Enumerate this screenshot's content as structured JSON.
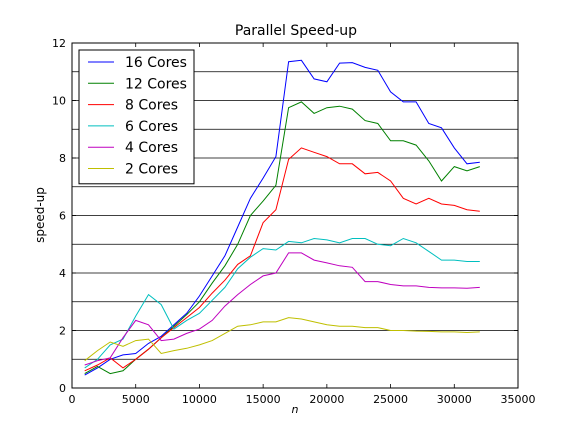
{
  "chart_data": {
    "type": "line",
    "title": "Parallel Speed-up",
    "xlabel": "n",
    "ylabel": "speed-up",
    "xlim": [
      0,
      35000
    ],
    "ylim": [
      0,
      12
    ],
    "xticks": [
      0,
      5000,
      10000,
      15000,
      20000,
      25000,
      30000,
      35000
    ],
    "yticks": [
      0,
      2,
      4,
      6,
      8,
      10,
      12
    ],
    "grid": "horizontal",
    "legend_position": "top-left",
    "x": [
      1000,
      2000,
      3000,
      4000,
      5000,
      6000,
      7000,
      8000,
      9000,
      10000,
      11000,
      12000,
      13000,
      14000,
      15000,
      16000,
      17000,
      18000,
      19000,
      20000,
      21000,
      22000,
      23000,
      24000,
      25000,
      26000,
      27000,
      28000,
      29000,
      30000,
      31000,
      32000
    ],
    "series": [
      {
        "name": "16 Cores",
        "color": "#0000ff",
        "values": [
          0.45,
          0.7,
          1.0,
          1.15,
          1.2,
          1.55,
          1.8,
          2.2,
          2.6,
          3.2,
          3.9,
          4.6,
          5.6,
          6.6,
          7.3,
          8.05,
          11.35,
          11.4,
          10.75,
          10.65,
          11.3,
          11.32,
          11.15,
          11.05,
          10.3,
          9.95,
          9.95,
          9.2,
          9.05,
          8.35,
          7.8,
          7.85
        ]
      },
      {
        "name": "12 Cores",
        "color": "#008000",
        "values": [
          0.5,
          0.75,
          0.5,
          0.6,
          1.0,
          1.35,
          1.75,
          2.15,
          2.55,
          3.0,
          3.65,
          4.25,
          5.0,
          6.0,
          6.5,
          7.05,
          9.75,
          9.95,
          9.55,
          9.75,
          9.8,
          9.7,
          9.3,
          9.2,
          8.6,
          8.6,
          8.45,
          7.9,
          7.2,
          7.7,
          7.55,
          7.7
        ]
      },
      {
        "name": "8 Cores",
        "color": "#ff0000",
        "values": [
          0.6,
          0.8,
          1.05,
          0.7,
          1.0,
          1.35,
          1.75,
          2.1,
          2.45,
          2.8,
          3.3,
          3.75,
          4.3,
          4.6,
          5.75,
          6.2,
          7.95,
          8.35,
          8.2,
          8.05,
          7.8,
          7.8,
          7.45,
          7.5,
          7.2,
          6.6,
          6.4,
          6.6,
          6.4,
          6.35,
          6.2,
          6.15
        ]
      },
      {
        "name": "6 Cores",
        "color": "#00bfbf",
        "values": [
          0.7,
          1.0,
          1.5,
          1.7,
          2.5,
          3.25,
          2.9,
          2.05,
          2.35,
          2.6,
          3.05,
          3.5,
          4.15,
          4.55,
          4.85,
          4.8,
          5.1,
          5.05,
          5.2,
          5.15,
          5.05,
          5.2,
          5.2,
          5.0,
          4.95,
          5.2,
          5.05,
          4.75,
          4.45,
          4.45,
          4.4,
          4.4
        ]
      },
      {
        "name": "4 Cores",
        "color": "#bf00bf",
        "values": [
          0.8,
          0.95,
          1.05,
          1.75,
          2.35,
          2.2,
          1.65,
          1.7,
          1.9,
          2.05,
          2.35,
          2.85,
          3.25,
          3.6,
          3.9,
          4.0,
          4.7,
          4.7,
          4.45,
          4.35,
          4.25,
          4.2,
          3.7,
          3.7,
          3.6,
          3.55,
          3.55,
          3.5,
          3.48,
          3.48,
          3.47,
          3.5
        ]
      },
      {
        "name": "2 Cores",
        "color": "#bfbf00",
        "values": [
          0.95,
          1.3,
          1.6,
          1.45,
          1.65,
          1.7,
          1.2,
          1.3,
          1.38,
          1.5,
          1.65,
          1.9,
          2.15,
          2.2,
          2.3,
          2.3,
          2.45,
          2.4,
          2.3,
          2.2,
          2.15,
          2.15,
          2.1,
          2.1,
          2.0,
          2.0,
          1.98,
          1.97,
          1.95,
          1.95,
          1.93,
          1.95
        ]
      }
    ]
  }
}
